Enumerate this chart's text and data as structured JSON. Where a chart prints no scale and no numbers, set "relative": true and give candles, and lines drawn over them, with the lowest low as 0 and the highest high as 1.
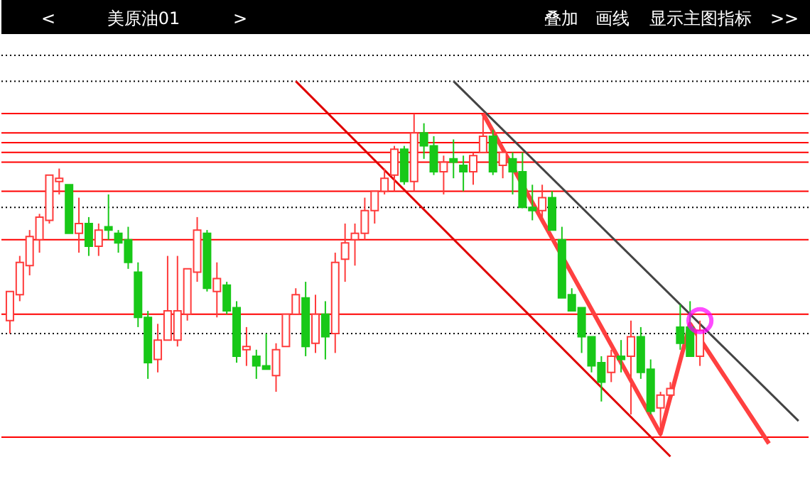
{
  "chart_data": {
    "type": "candlestick",
    "title": "美原油01",
    "annotations": [
      "<",
      ">",
      "叠加",
      "画线",
      "显示主图指标",
      ">>"
    ],
    "relative": true,
    "categories": [
      null,
      null,
      null,
      null,
      null,
      null,
      null,
      null,
      null,
      null,
      null,
      null,
      null,
      null,
      null,
      null,
      null,
      null,
      null,
      null,
      null,
      null,
      null,
      null,
      null,
      null,
      null,
      null,
      null,
      null,
      null,
      null,
      null,
      null,
      null,
      null,
      null,
      null,
      null,
      null,
      null,
      null,
      null,
      null,
      null,
      null,
      null,
      null,
      null,
      null,
      null,
      null,
      null,
      null,
      null,
      null,
      null,
      null,
      null,
      null,
      null,
      null,
      null,
      null,
      null,
      null,
      null,
      null,
      null,
      null,
      null,
      null,
      null,
      null,
      null,
      null,
      null,
      null,
      null,
      null,
      null
    ],
    "ohlc": [
      [
        0.36,
        0.45,
        0.32,
        0.45
      ],
      [
        0.44,
        0.56,
        0.42,
        0.54
      ],
      [
        0.53,
        0.64,
        0.5,
        0.62
      ],
      [
        0.61,
        0.69,
        0.57,
        0.68
      ],
      [
        0.67,
        0.81,
        0.66,
        0.81
      ],
      [
        0.79,
        0.83,
        0.75,
        0.8
      ],
      [
        0.78,
        0.78,
        0.63,
        0.63
      ],
      [
        0.63,
        0.74,
        0.57,
        0.66
      ],
      [
        0.66,
        0.68,
        0.56,
        0.59
      ],
      [
        0.59,
        0.66,
        0.56,
        0.64
      ],
      [
        0.65,
        0.75,
        0.61,
        0.64
      ],
      [
        0.63,
        0.64,
        0.57,
        0.6
      ],
      [
        0.61,
        0.65,
        0.52,
        0.54
      ],
      [
        0.51,
        0.54,
        0.34,
        0.37
      ],
      [
        0.37,
        0.39,
        0.18,
        0.23
      ],
      [
        0.24,
        0.35,
        0.2,
        0.3
      ],
      [
        0.3,
        0.56,
        0.3,
        0.39
      ],
      [
        0.3,
        0.56,
        0.28,
        0.39
      ],
      [
        0.38,
        0.52,
        0.36,
        0.52
      ],
      [
        0.51,
        0.68,
        0.48,
        0.64
      ],
      [
        0.63,
        0.64,
        0.45,
        0.46
      ],
      [
        0.45,
        0.54,
        0.37,
        0.49
      ],
      [
        0.47,
        0.48,
        0.38,
        0.39
      ],
      [
        0.4,
        0.42,
        0.23,
        0.25
      ],
      [
        0.27,
        0.34,
        0.22,
        0.28
      ],
      [
        0.25,
        0.27,
        0.18,
        0.22
      ],
      [
        0.22,
        0.32,
        0.21,
        0.21
      ],
      [
        0.19,
        0.29,
        0.14,
        0.27
      ],
      [
        0.28,
        0.38,
        0.28,
        0.38
      ],
      [
        0.38,
        0.46,
        0.38,
        0.44
      ],
      [
        0.43,
        0.48,
        0.25,
        0.28
      ],
      [
        0.29,
        0.44,
        0.26,
        0.38
      ],
      [
        0.38,
        0.42,
        0.24,
        0.31
      ],
      [
        0.32,
        0.57,
        0.26,
        0.54
      ],
      [
        0.55,
        0.66,
        0.48,
        0.6
      ],
      [
        0.61,
        0.66,
        0.53,
        0.63
      ],
      [
        0.63,
        0.74,
        0.61,
        0.7
      ],
      [
        0.7,
        0.76,
        0.66,
        0.76
      ],
      [
        0.76,
        0.83,
        0.75,
        0.8
      ],
      [
        0.81,
        0.9,
        0.76,
        0.89
      ],
      [
        0.89,
        0.9,
        0.78,
        0.79
      ],
      [
        0.79,
        1.0,
        0.76,
        0.94
      ],
      [
        0.94,
        0.97,
        0.86,
        0.9
      ],
      [
        0.9,
        0.93,
        0.81,
        0.82
      ],
      [
        0.82,
        0.87,
        0.75,
        0.85
      ],
      [
        0.86,
        0.92,
        0.8,
        0.85
      ],
      [
        0.84,
        0.87,
        0.76,
        0.82
      ],
      [
        0.82,
        0.88,
        0.78,
        0.87
      ],
      [
        0.88,
        0.99,
        0.88,
        0.93
      ],
      [
        0.93,
        0.95,
        0.81,
        0.82
      ],
      [
        0.84,
        0.89,
        0.8,
        0.88
      ],
      [
        0.86,
        0.88,
        0.75,
        0.82
      ],
      [
        0.82,
        0.88,
        0.71,
        0.71
      ],
      [
        0.71,
        0.78,
        0.67,
        0.7
      ],
      [
        0.7,
        0.78,
        0.68,
        0.74
      ],
      [
        0.74,
        0.76,
        0.64,
        0.64
      ],
      [
        0.61,
        0.65,
        0.43,
        0.43
      ],
      [
        0.44,
        0.46,
        0.39,
        0.39
      ],
      [
        0.4,
        0.4,
        0.26,
        0.31
      ],
      [
        0.31,
        0.31,
        0.2,
        0.22
      ],
      [
        0.23,
        0.25,
        0.11,
        0.17
      ],
      [
        0.2,
        0.27,
        0.17,
        0.25
      ],
      [
        0.25,
        0.3,
        0.2,
        0.24
      ],
      [
        0.25,
        0.36,
        0.07,
        0.31
      ],
      [
        0.31,
        0.34,
        0.18,
        0.2
      ],
      [
        0.21,
        0.24,
        0.07,
        0.08
      ],
      [
        0.09,
        0.14,
        0.0,
        0.13
      ],
      [
        0.13,
        0.17,
        0.13,
        0.15
      ],
      [
        0.34,
        0.41,
        0.27,
        0.29
      ],
      [
        0.34,
        0.42,
        0.25,
        0.25
      ],
      [
        0.25,
        0.36,
        0.22,
        0.33
      ],
      null,
      null,
      null,
      null,
      null,
      null,
      null,
      null,
      null,
      null
    ],
    "colors": [
      "#ff3b3b",
      "#ff3b3b",
      "#ff3b3b",
      "#ff3b3b",
      "#ff3b3b",
      "#ff3b3b",
      "#18c818",
      "#ff3b3b",
      "#18c818",
      "#ff3b3b",
      "#18c818",
      "#18c818",
      "#18c818",
      "#18c818",
      "#18c818",
      "#ff3b3b",
      "#ff3b3b",
      "#ff3b3b",
      "#ff3b3b",
      "#ff3b3b",
      "#18c818",
      "#ff3b3b",
      "#18c818",
      "#18c818",
      "#ff3b3b",
      "#18c818",
      "#18c818",
      "#ff3b3b",
      "#ff3b3b",
      "#ff3b3b",
      "#18c818",
      "#ff3b3b",
      "#18c818",
      "#ff3b3b",
      "#ff3b3b",
      "#ff3b3b",
      "#ff3b3b",
      "#ff3b3b",
      "#ff3b3b",
      "#ff3b3b",
      "#18c818",
      "#ff3b3b",
      "#18c818",
      "#18c818",
      "#ff3b3b",
      "#18c818",
      "#18c818",
      "#ff3b3b",
      "#ff3b3b",
      "#18c818",
      "#ff3b3b",
      "#18c818",
      "#18c818",
      "#18c818",
      "#ff3b3b",
      "#18c818",
      "#18c818",
      "#18c818",
      "#18c818",
      "#18c818",
      "#18c818",
      "#ff3b3b",
      "#18c818",
      "#ff3b3b",
      "#18c818",
      "#18c818",
      "#ff3b3b",
      "#ff3b3b",
      "#18c818",
      "#18c818",
      "#ff3b3b",
      null,
      null,
      null,
      null,
      null,
      null,
      null,
      null,
      null,
      null
    ],
    "series": [
      {
        "type": "line",
        "color": "#e00000",
        "values": [
          null,
          null,
          null,
          null,
          null,
          null,
          null,
          null,
          null,
          null,
          null,
          null,
          null,
          null,
          null,
          null,
          null,
          null,
          null,
          null,
          null,
          null,
          null,
          null,
          null,
          null,
          null,
          null,
          null,
          1.1,
          null,
          null,
          null,
          null,
          null,
          null,
          null,
          null,
          null,
          null,
          null,
          null,
          null,
          null,
          null,
          null,
          null,
          null,
          null,
          null,
          null,
          null,
          null,
          null,
          null,
          null,
          null,
          null,
          null,
          null,
          null,
          null,
          null,
          null,
          null,
          null,
          null,
          -0.06,
          null,
          null,
          null,
          null,
          null,
          null,
          null,
          null,
          null,
          null,
          null,
          null,
          null
        ]
      },
      {
        "type": "line",
        "color": "#444444",
        "values": [
          null,
          null,
          null,
          null,
          null,
          null,
          null,
          null,
          null,
          null,
          null,
          null,
          null,
          null,
          null,
          null,
          null,
          null,
          null,
          null,
          null,
          null,
          null,
          null,
          null,
          null,
          null,
          null,
          null,
          null,
          null,
          null,
          null,
          null,
          null,
          null,
          null,
          null,
          null,
          null,
          null,
          null,
          null,
          null,
          null,
          1.1,
          null,
          null,
          null,
          null,
          null,
          null,
          null,
          null,
          null,
          null,
          null,
          null,
          null,
          null,
          null,
          null,
          null,
          null,
          null,
          null,
          null,
          null,
          null,
          null,
          null,
          null,
          null,
          null,
          null,
          null,
          null,
          null,
          null,
          null,
          0.05
        ]
      },
      {
        "type": "line",
        "color": "#ff4040",
        "values": [
          null,
          null,
          null,
          null,
          null,
          null,
          null,
          null,
          null,
          null,
          null,
          null,
          null,
          null,
          null,
          null,
          null,
          null,
          null,
          null,
          null,
          null,
          null,
          null,
          null,
          null,
          null,
          null,
          null,
          null,
          null,
          null,
          null,
          null,
          null,
          null,
          null,
          null,
          null,
          null,
          null,
          null,
          null,
          null,
          null,
          null,
          null,
          null,
          1.0,
          null,
          null,
          null,
          null,
          null,
          null,
          null,
          null,
          null,
          null,
          null,
          null,
          null,
          null,
          null,
          null,
          null,
          0.01,
          null,
          null,
          0.35,
          null,
          null,
          null,
          null,
          null,
          null,
          null,
          -0.02,
          null,
          null,
          null
        ]
      },
      {
        "type": "scatter",
        "marker": "circle",
        "color": "#ff00ff",
        "values": [
          null,
          null,
          null,
          null,
          null,
          null,
          null,
          null,
          null,
          null,
          null,
          null,
          null,
          null,
          null,
          null,
          null,
          null,
          null,
          null,
          null,
          null,
          null,
          null,
          null,
          null,
          null,
          null,
          null,
          null,
          null,
          null,
          null,
          null,
          null,
          null,
          null,
          null,
          null,
          null,
          null,
          null,
          null,
          null,
          null,
          null,
          null,
          null,
          null,
          null,
          null,
          null,
          null,
          null,
          null,
          null,
          null,
          null,
          null,
          null,
          null,
          null,
          null,
          null,
          null,
          null,
          null,
          null,
          null,
          null,
          0.36,
          null,
          null,
          null,
          null,
          null,
          null,
          null,
          null,
          null,
          null
        ]
      }
    ],
    "ref_lines": [
      {
        "axis": "y",
        "value": 1.0,
        "color": "#ff0000"
      },
      {
        "axis": "y",
        "value": 0.94,
        "color": "#ff0000"
      },
      {
        "axis": "y",
        "value": 0.91,
        "color": "#ff0000"
      },
      {
        "axis": "y",
        "value": 0.88,
        "color": "#ff0000"
      },
      {
        "axis": "y",
        "value": 0.85,
        "color": "#ff0000"
      },
      {
        "axis": "y",
        "value": 0.76,
        "color": "#ff0000"
      },
      {
        "axis": "y",
        "value": 0.61,
        "color": "#ff0000"
      },
      {
        "axis": "y",
        "value": 0.38,
        "color": "#ff0000"
      },
      {
        "axis": "y",
        "value": 0.0,
        "color": "#ff0000"
      },
      {
        "axis": "y",
        "value": 1.18,
        "color": "#000000",
        "line_style": "dotted"
      },
      {
        "axis": "y",
        "value": 1.1,
        "color": "#000000",
        "line_style": "dotted"
      },
      {
        "axis": "y",
        "value": 0.71,
        "color": "#000000",
        "line_style": "dotted"
      },
      {
        "axis": "y",
        "value": 0.32,
        "color": "#000000",
        "line_style": "dotted"
      }
    ]
  }
}
